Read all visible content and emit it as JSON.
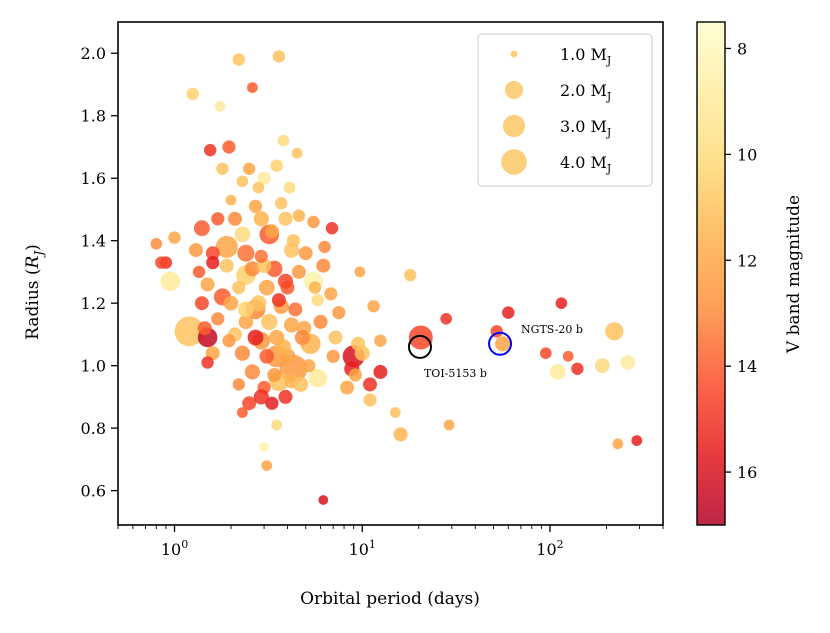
{
  "chart_data": {
    "type": "scatter",
    "xlabel": "Orbital period (days)",
    "ylabel": "Radius (R_J)",
    "xscale": "log",
    "xlim": [
      0.5,
      400
    ],
    "ylim": [
      0.49,
      2.1
    ],
    "xticks": [
      {
        "value": 1,
        "label": "10^0"
      },
      {
        "value": 10,
        "label": "10^1"
      },
      {
        "value": 100,
        "label": "10^2"
      }
    ],
    "yticks": [
      0.6,
      0.8,
      1.0,
      1.2,
      1.4,
      1.6,
      1.8,
      2.0
    ],
    "colorbar": {
      "label": "V band magnitude",
      "range": [
        7.5,
        17.0
      ],
      "ticks": [
        8,
        10,
        12,
        14,
        16
      ],
      "colormap": "YlOrRd",
      "stops": [
        "#ffffcc",
        "#ffeda0",
        "#fed976",
        "#feb24c",
        "#fd8d3c",
        "#fc4e2a",
        "#e31a1c",
        "#b10026"
      ]
    },
    "legend": {
      "position": "top-right",
      "entries": [
        {
          "label": "1.0 M_J",
          "mass": 1.0
        },
        {
          "label": "2.0 M_J",
          "mass": 2.0
        },
        {
          "label": "3.0 M_J",
          "mass": 3.0
        },
        {
          "label": "4.0 M_J",
          "mass": 4.0
        }
      ]
    },
    "highlights": [
      {
        "name": "TOI-5153 b",
        "x": 20.3,
        "y": 1.06,
        "color": "#000000"
      },
      {
        "name": "NGTS-20 b",
        "x": 54.2,
        "y": 1.07,
        "color": "#0000ff"
      }
    ],
    "points": [
      [
        1.2,
        1.11,
        4.5,
        11
      ],
      [
        4.3,
        0.99,
        4.0,
        12.5
      ],
      [
        1.9,
        1.38,
        2.5,
        12
      ],
      [
        0.95,
        1.27,
        2.0,
        9
      ],
      [
        5.5,
        1.27,
        1.9,
        8.5
      ],
      [
        1.5,
        1.09,
        2.0,
        16.5
      ],
      [
        9.0,
        1.03,
        2.5,
        16
      ],
      [
        3.5,
        1.03,
        2.5,
        12.5
      ],
      [
        20.5,
        1.09,
        3.0,
        14.5
      ],
      [
        5.3,
        1.07,
        2.1,
        11.5
      ],
      [
        220,
        1.11,
        1.7,
        11
      ],
      [
        3.2,
        1.42,
        2.0,
        14
      ],
      [
        5.8,
        0.96,
        1.8,
        9
      ],
      [
        110,
        0.98,
        1.3,
        9
      ],
      [
        1.8,
        1.22,
        1.5,
        14
      ],
      [
        2.4,
        1.29,
        2.0,
        10.5
      ],
      [
        2.7,
        1.18,
        2.0,
        13
      ],
      [
        3.6,
        0.95,
        2.0,
        11
      ],
      [
        1.4,
        1.44,
        1.3,
        14
      ],
      [
        1.3,
        1.37,
        1.0,
        12.5
      ],
      [
        2.9,
        1.08,
        1.6,
        12.5
      ],
      [
        4.9,
        1.12,
        1.1,
        12
      ],
      [
        8.3,
        0.93,
        1.0,
        12
      ],
      [
        8.8,
        0.99,
        1.2,
        15.5
      ],
      [
        6.9,
        1.44,
        0.8,
        15
      ],
      [
        11.0,
        0.94,
        1.0,
        15
      ],
      [
        12.5,
        0.98,
        1.0,
        15.5
      ],
      [
        7.2,
        1.09,
        1.0,
        11
      ],
      [
        9.5,
        1.07,
        1.0,
        11
      ],
      [
        56,
        1.07,
        1.2,
        12
      ],
      [
        190,
        1.0,
        1.1,
        10
      ],
      [
        260,
        1.01,
        1.1,
        9
      ],
      [
        1.55,
        1.69,
        0.8,
        15
      ],
      [
        1.95,
        1.7,
        0.9,
        14
      ],
      [
        2.5,
        1.63,
        0.8,
        12
      ],
      [
        3.0,
        1.6,
        0.9,
        9
      ],
      [
        2.8,
        1.57,
        0.7,
        11
      ],
      [
        3.5,
        1.64,
        0.8,
        10.5
      ],
      [
        4.1,
        1.57,
        0.7,
        10
      ],
      [
        2.0,
        1.53,
        0.6,
        11.5
      ],
      [
        3.7,
        1.52,
        0.8,
        11
      ],
      [
        1.7,
        1.47,
        0.9,
        14
      ],
      [
        2.1,
        1.47,
        1.0,
        13
      ],
      [
        2.9,
        1.47,
        1.2,
        11.5
      ],
      [
        3.9,
        1.47,
        1.0,
        11
      ],
      [
        2.3,
        1.42,
        1.3,
        10
      ],
      [
        3.3,
        1.43,
        1.0,
        12
      ],
      [
        1.6,
        1.36,
        1.0,
        14.5
      ],
      [
        2.4,
        1.36,
        1.5,
        13.5
      ],
      [
        4.2,
        1.37,
        1.2,
        11
      ],
      [
        5.0,
        1.36,
        1.0,
        12.5
      ],
      [
        1.9,
        1.32,
        1.0,
        11
      ],
      [
        2.6,
        1.31,
        1.2,
        13
      ],
      [
        3.4,
        1.31,
        1.4,
        14
      ],
      [
        4.6,
        1.3,
        1.0,
        12.5
      ],
      [
        1.5,
        1.26,
        1.0,
        12
      ],
      [
        2.2,
        1.25,
        0.9,
        11
      ],
      [
        3.1,
        1.25,
        1.3,
        12
      ],
      [
        4.0,
        1.25,
        1.0,
        14
      ],
      [
        1.4,
        1.2,
        1.0,
        14.5
      ],
      [
        2.0,
        1.2,
        1.1,
        12
      ],
      [
        2.8,
        1.2,
        1.3,
        11
      ],
      [
        3.7,
        1.19,
        1.2,
        12.5
      ],
      [
        4.4,
        1.18,
        1.0,
        13.5
      ],
      [
        1.7,
        1.15,
        0.9,
        13
      ],
      [
        2.4,
        1.14,
        1.1,
        12
      ],
      [
        3.2,
        1.14,
        1.4,
        11
      ],
      [
        4.2,
        1.13,
        1.2,
        12
      ],
      [
        6.0,
        1.14,
        1.0,
        13
      ],
      [
        2.1,
        1.1,
        1.0,
        11
      ],
      [
        2.7,
        1.09,
        1.3,
        15.5
      ],
      [
        3.5,
        1.09,
        1.2,
        12
      ],
      [
        4.8,
        1.09,
        1.2,
        13
      ],
      [
        1.6,
        1.04,
        1.0,
        12
      ],
      [
        2.3,
        1.04,
        1.2,
        13
      ],
      [
        3.1,
        1.03,
        1.1,
        14
      ],
      [
        4.0,
        1.03,
        1.3,
        12
      ],
      [
        2.6,
        0.98,
        1.2,
        13
      ],
      [
        3.4,
        0.97,
        1.0,
        12.5
      ],
      [
        4.2,
        0.95,
        1.0,
        11.5
      ],
      [
        3.0,
        0.93,
        0.9,
        14
      ],
      [
        3.9,
        0.9,
        1.0,
        15
      ],
      [
        3.3,
        0.88,
        0.9,
        15.5
      ],
      [
        6.2,
        1.32,
        1.0,
        13
      ],
      [
        6.8,
        1.23,
        0.9,
        12
      ],
      [
        7.5,
        1.17,
        0.9,
        12.5
      ],
      [
        5.8,
        1.21,
        0.8,
        10
      ],
      [
        4.6,
        1.48,
        0.8,
        11.5
      ],
      [
        5.5,
        1.46,
        0.8,
        12.5
      ],
      [
        6.3,
        1.38,
        0.8,
        13
      ],
      [
        3.8,
        1.72,
        0.7,
        10
      ],
      [
        4.5,
        1.68,
        0.6,
        11
      ],
      [
        2.2,
        1.98,
        0.8,
        11
      ],
      [
        3.6,
        1.99,
        0.8,
        11
      ],
      [
        1.25,
        1.87,
        0.8,
        10.5
      ],
      [
        1.75,
        1.83,
        0.6,
        9
      ],
      [
        2.6,
        1.89,
        0.6,
        14
      ],
      [
        2.3,
        1.59,
        0.7,
        11
      ],
      [
        1.8,
        1.63,
        0.8,
        11
      ],
      [
        3.9,
        1.27,
        1.2,
        14.5
      ],
      [
        0.9,
        1.33,
        0.8,
        15
      ],
      [
        0.8,
        1.39,
        0.7,
        13
      ],
      [
        0.85,
        1.33,
        0.8,
        14.5
      ],
      [
        1.0,
        1.41,
        0.8,
        12
      ],
      [
        1.35,
        1.3,
        0.8,
        14
      ],
      [
        1.45,
        1.12,
        1.0,
        14
      ],
      [
        1.95,
        1.08,
        0.9,
        12.5
      ],
      [
        1.5,
        1.01,
        0.8,
        15
      ],
      [
        2.2,
        0.94,
        0.8,
        13
      ],
      [
        2.5,
        0.88,
        1.0,
        14.5
      ],
      [
        2.9,
        0.9,
        1.2,
        15
      ],
      [
        2.3,
        0.85,
        0.6,
        14
      ],
      [
        3.5,
        0.81,
        0.6,
        10
      ],
      [
        3.0,
        0.74,
        0.5,
        8.5
      ],
      [
        3.1,
        0.68,
        0.6,
        12
      ],
      [
        6.2,
        0.57,
        0.5,
        16
      ],
      [
        9.7,
        1.3,
        0.6,
        12
      ],
      [
        11.5,
        1.19,
        0.8,
        12
      ],
      [
        12.5,
        1.08,
        0.8,
        12
      ],
      [
        11.0,
        0.89,
        0.9,
        11
      ],
      [
        16,
        0.78,
        1.0,
        11.5
      ],
      [
        15,
        0.85,
        0.6,
        11
      ],
      [
        29,
        0.81,
        0.6,
        12
      ],
      [
        18,
        1.29,
        0.8,
        11
      ],
      [
        28,
        1.15,
        0.7,
        15
      ],
      [
        52,
        1.11,
        0.8,
        14.5
      ],
      [
        60,
        1.17,
        0.8,
        15.5
      ],
      [
        115,
        1.2,
        0.7,
        15.5
      ],
      [
        95,
        1.04,
        0.7,
        14.5
      ],
      [
        125,
        1.03,
        0.6,
        14
      ],
      [
        140,
        0.99,
        0.8,
        15
      ],
      [
        230,
        0.75,
        0.6,
        12
      ],
      [
        290,
        0.76,
        0.6,
        15.5
      ],
      [
        10,
        1.04,
        1.2,
        11
      ],
      [
        9.2,
        0.97,
        0.9,
        12
      ],
      [
        5.2,
        1.0,
        0.9,
        12
      ],
      [
        7.0,
        1.03,
        0.9,
        12.5
      ],
      [
        4.7,
        0.94,
        1.2,
        11
      ],
      [
        3.8,
        1.06,
        1.2,
        11.5
      ],
      [
        2.4,
        1.18,
        1.3,
        10.5
      ],
      [
        3.0,
        1.32,
        1.1,
        11
      ],
      [
        3.6,
        1.21,
        1.0,
        15
      ],
      [
        4.3,
        1.4,
        0.9,
        11
      ],
      [
        1.6,
        1.33,
        0.9,
        15.5
      ],
      [
        2.9,
        1.35,
        0.9,
        13.5
      ],
      [
        5.6,
        1.25,
        0.8,
        11.5
      ],
      [
        2.7,
        1.51,
        0.9,
        12
      ]
    ]
  }
}
